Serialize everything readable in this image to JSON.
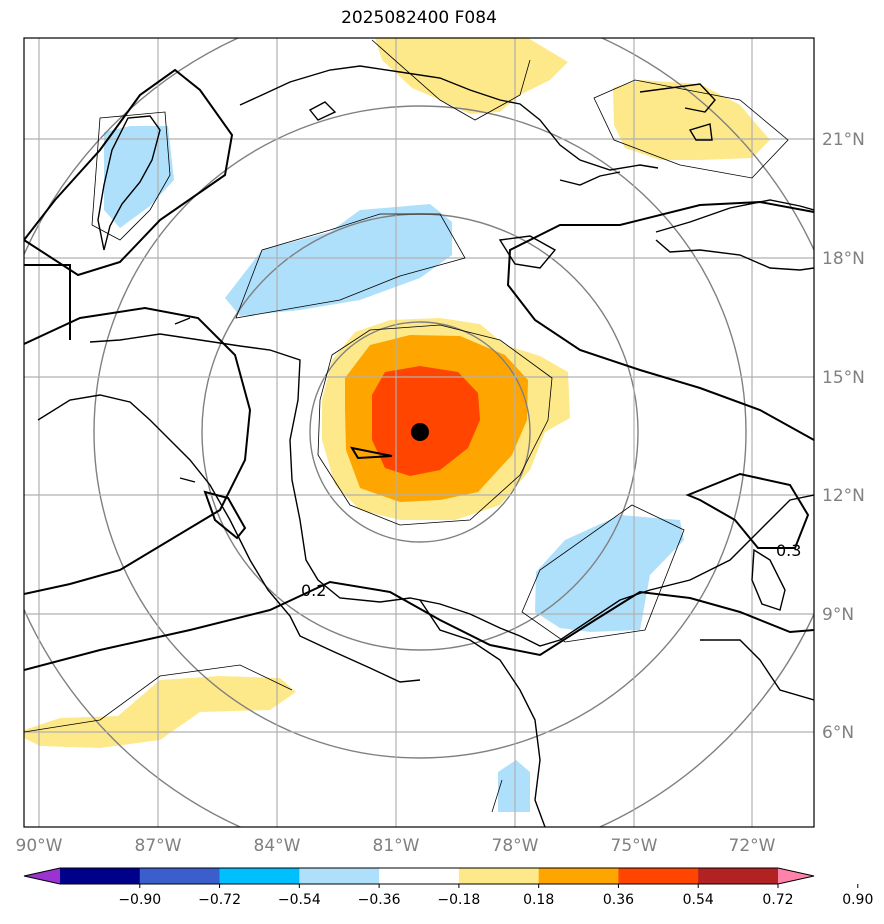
{
  "title": "2025082400 F084",
  "map": {
    "lon_ticks": [
      {
        "value": -90,
        "label": "90°W"
      },
      {
        "value": -87,
        "label": "87°W"
      },
      {
        "value": -84,
        "label": "84°W"
      },
      {
        "value": -81,
        "label": "81°W"
      },
      {
        "value": -78,
        "label": "78°W"
      },
      {
        "value": -75,
        "label": "75°W"
      },
      {
        "value": -72,
        "label": "72°W"
      }
    ],
    "lat_ticks": [
      {
        "value": 21,
        "label": "21°N"
      },
      {
        "value": 18,
        "label": "18°N"
      },
      {
        "value": 15,
        "label": "15°N"
      },
      {
        "value": 12,
        "label": "12°N"
      },
      {
        "value": 9,
        "label": "9°N"
      },
      {
        "value": 6,
        "label": "6°N"
      }
    ],
    "lon_range": [
      -90.35,
      -70.35
    ],
    "lat_range": [
      3.6,
      23.5
    ],
    "storm_center": {
      "lon": -80.4,
      "lat": 13.6
    },
    "contour_labels": [
      {
        "text": "0.2",
        "lon": -83.4,
        "lat": 9.5
      },
      {
        "text": "0.3",
        "lon": -71.5,
        "lat": 10.6
      }
    ],
    "colors": {
      "grid": "#b0b0b0",
      "range_rings": "#808080",
      "coast": "#000000",
      "pos_1": "#fee98a",
      "pos_2": "#ffa500",
      "pos_3": "#ff4500",
      "neg_1": "#afe0fb",
      "storm": "#000000"
    }
  },
  "colorbar": {
    "labels": [
      "−0.90",
      "−0.72",
      "−0.54",
      "−0.36",
      "−0.18",
      "0.18",
      "0.36",
      "0.54",
      "0.72",
      "0.90"
    ],
    "colors": [
      "#9b32d2",
      "#00008b",
      "#3a5fcd",
      "#00bfff",
      "#afe0fb",
      "#ffffff",
      "#fee98a",
      "#ffa500",
      "#ff4500",
      "#b22222",
      "#ff82ab"
    ]
  }
}
